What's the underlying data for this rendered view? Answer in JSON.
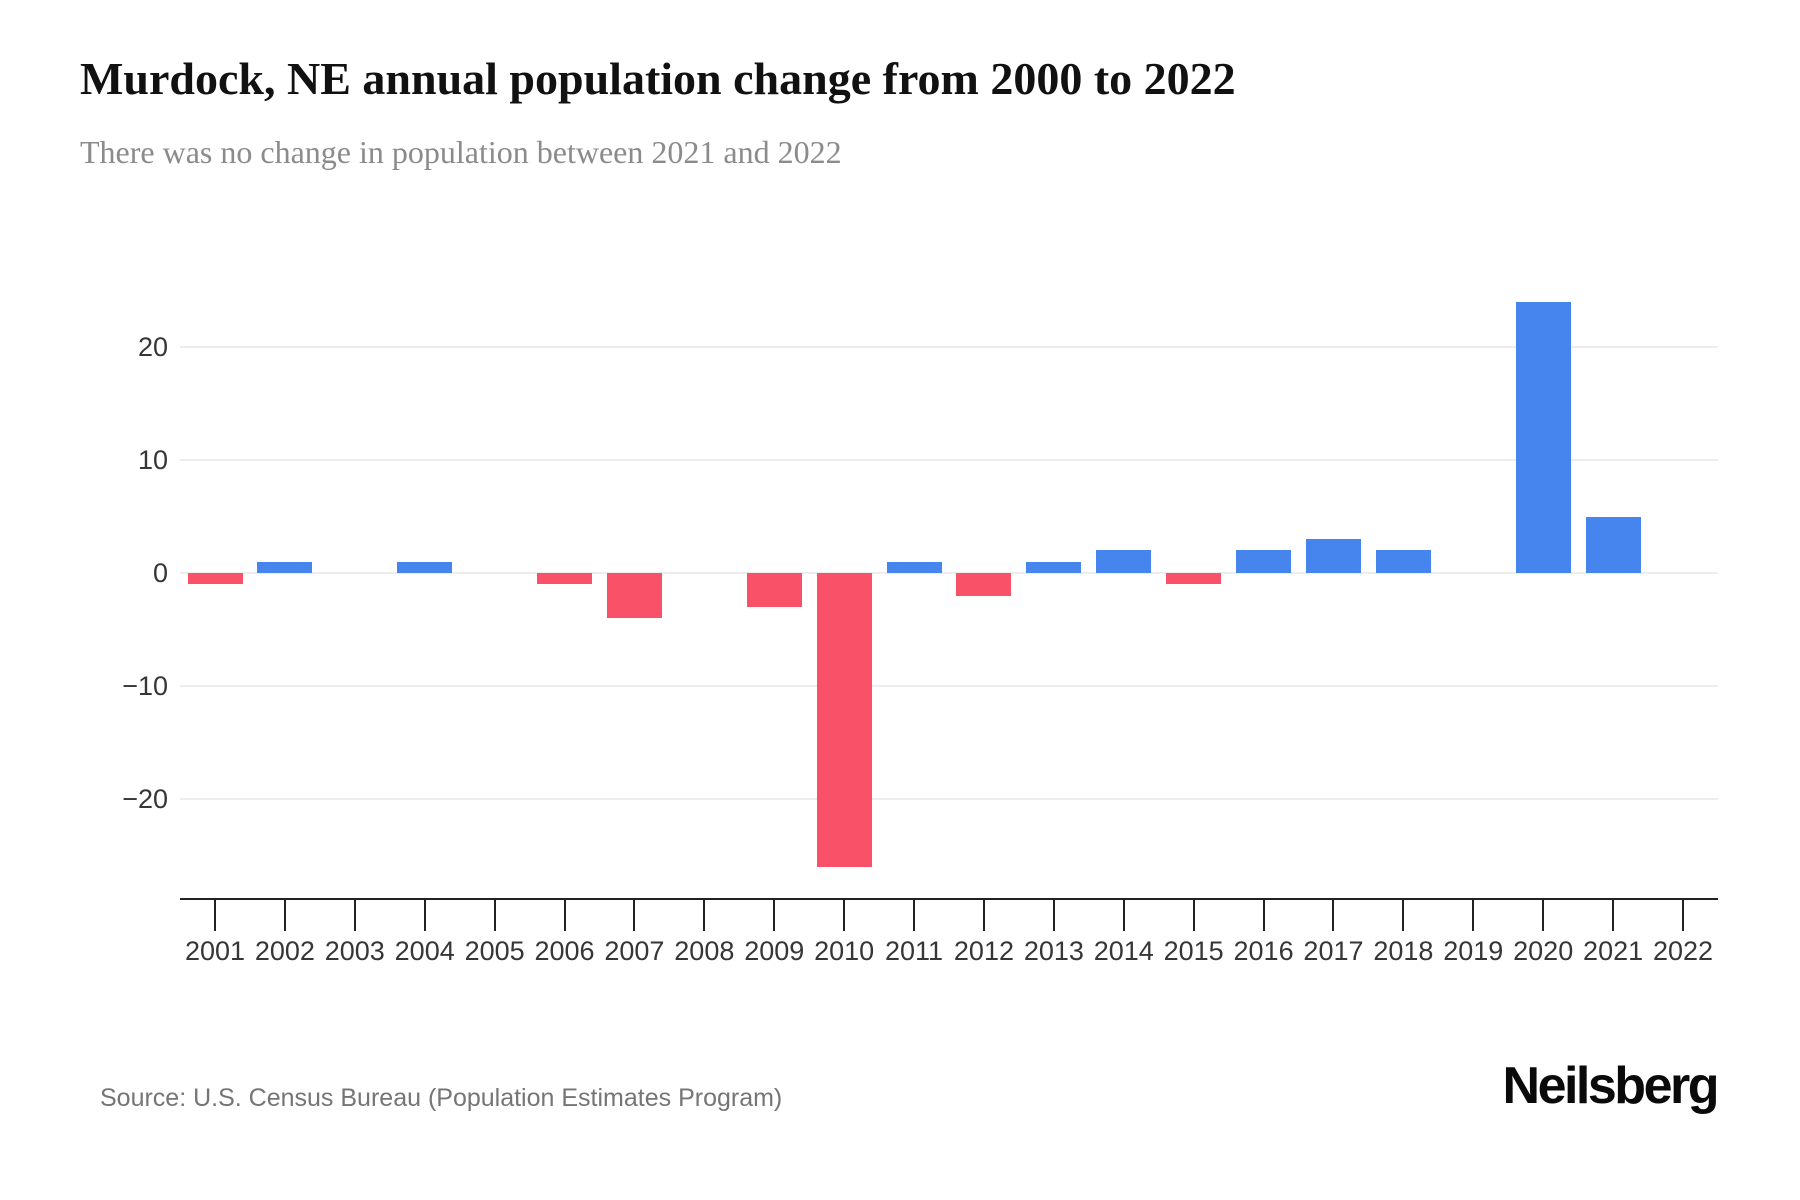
{
  "header": {
    "title": "Murdock, NE annual population change from 2000 to 2022",
    "subtitle": "There was no change in population between 2021 and 2022"
  },
  "chart_data": {
    "type": "bar",
    "title": "Murdock, NE annual population change from 2000 to 2022",
    "subtitle": "There was no change in population between 2021 and 2022",
    "categories": [
      "2001",
      "2002",
      "2003",
      "2004",
      "2005",
      "2006",
      "2007",
      "2008",
      "2009",
      "2010",
      "2011",
      "2012",
      "2013",
      "2014",
      "2015",
      "2016",
      "2017",
      "2018",
      "2019",
      "2020",
      "2021",
      "2022"
    ],
    "values": [
      -1,
      1,
      0,
      1,
      0,
      -1,
      -4,
      0,
      -3,
      -26,
      1,
      -2,
      1,
      2,
      -1,
      2,
      3,
      2,
      0,
      24,
      5,
      0
    ],
    "yticks": [
      20,
      10,
      0,
      -10,
      -20
    ],
    "yticklabels": [
      "20",
      "10",
      "0",
      "−10",
      "−20"
    ],
    "ylim": [
      -29,
      26
    ],
    "xlabel": "",
    "ylabel": "",
    "grid": true,
    "legend": false,
    "positive_color": "#4684EE",
    "negative_color": "#F95268",
    "gridline_color": "#ededed",
    "axis_color": "#222222",
    "tick_label_color": "#363636"
  },
  "footer": {
    "source": "Source: U.S. Census Bureau (Population Estimates Program)",
    "brand": "Neilsberg"
  }
}
